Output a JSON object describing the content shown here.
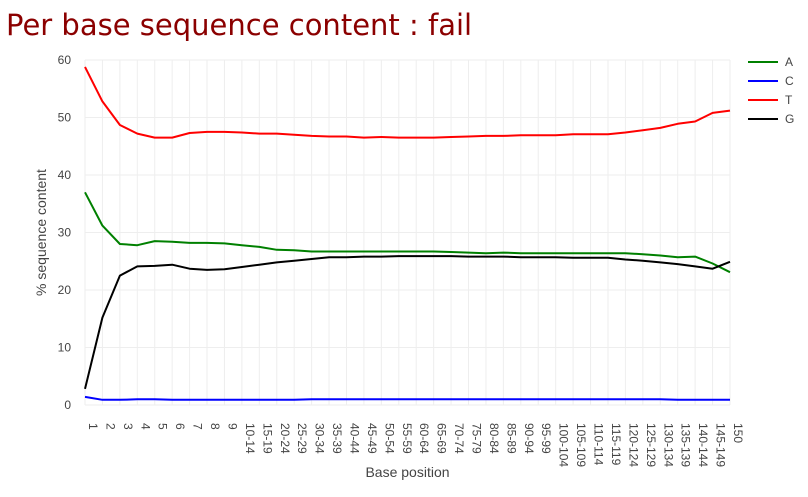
{
  "title": "Per base sequence content : fail",
  "chart_data": {
    "type": "line",
    "title": "Per base sequence content : fail",
    "xlabel": "Base position",
    "ylabel": "% sequence content",
    "ylim": [
      0,
      60
    ],
    "yticks": [
      0,
      10,
      20,
      30,
      40,
      50,
      60
    ],
    "grid": true,
    "legend_position": "top-right",
    "categories": [
      "1",
      "2",
      "3",
      "4",
      "5",
      "6",
      "7",
      "8",
      "9",
      "10-14",
      "15-19",
      "20-24",
      "25-29",
      "30-34",
      "35-39",
      "40-44",
      "45-49",
      "50-54",
      "55-59",
      "60-64",
      "65-69",
      "70-74",
      "75-79",
      "80-84",
      "85-89",
      "90-94",
      "95-99",
      "100-104",
      "105-109",
      "110-114",
      "115-119",
      "120-124",
      "125-129",
      "130-134",
      "135-139",
      "140-144",
      "145-149",
      "150"
    ],
    "series": [
      {
        "name": "A",
        "color": "#008000",
        "values": [
          37.0,
          31.2,
          28.0,
          27.8,
          28.5,
          28.4,
          28.2,
          28.2,
          28.1,
          27.8,
          27.5,
          27.0,
          26.9,
          26.7,
          26.7,
          26.7,
          26.7,
          26.7,
          26.7,
          26.7,
          26.7,
          26.6,
          26.5,
          26.4,
          26.5,
          26.4,
          26.4,
          26.4,
          26.4,
          26.4,
          26.4,
          26.4,
          26.2,
          26.0,
          25.7,
          25.8,
          24.6,
          23.1
        ]
      },
      {
        "name": "C",
        "color": "#0000ff",
        "values": [
          1.4,
          0.9,
          0.9,
          1.0,
          1.0,
          0.9,
          0.9,
          0.9,
          0.9,
          0.9,
          0.9,
          0.9,
          0.9,
          1.0,
          1.0,
          1.0,
          1.0,
          1.0,
          1.0,
          1.0,
          1.0,
          1.0,
          1.0,
          1.0,
          1.0,
          1.0,
          1.0,
          1.0,
          1.0,
          1.0,
          1.0,
          1.0,
          1.0,
          1.0,
          0.9,
          0.9,
          0.9,
          0.9
        ]
      },
      {
        "name": "T",
        "color": "#ff0000",
        "values": [
          58.8,
          52.8,
          48.7,
          47.2,
          46.5,
          46.5,
          47.3,
          47.5,
          47.5,
          47.4,
          47.2,
          47.2,
          47.0,
          46.8,
          46.7,
          46.7,
          46.5,
          46.6,
          46.5,
          46.5,
          46.5,
          46.6,
          46.7,
          46.8,
          46.8,
          46.9,
          46.9,
          46.9,
          47.1,
          47.1,
          47.1,
          47.4,
          47.8,
          48.2,
          48.9,
          49.3,
          50.8,
          51.2
        ]
      },
      {
        "name": "G",
        "color": "#000000",
        "values": [
          2.8,
          15.2,
          22.5,
          24.1,
          24.2,
          24.4,
          23.7,
          23.5,
          23.6,
          24.0,
          24.4,
          24.8,
          25.1,
          25.4,
          25.7,
          25.7,
          25.8,
          25.8,
          25.9,
          25.9,
          25.9,
          25.9,
          25.8,
          25.8,
          25.8,
          25.7,
          25.7,
          25.7,
          25.6,
          25.6,
          25.6,
          25.3,
          25.1,
          24.8,
          24.5,
          24.1,
          23.7,
          24.9
        ]
      }
    ]
  }
}
